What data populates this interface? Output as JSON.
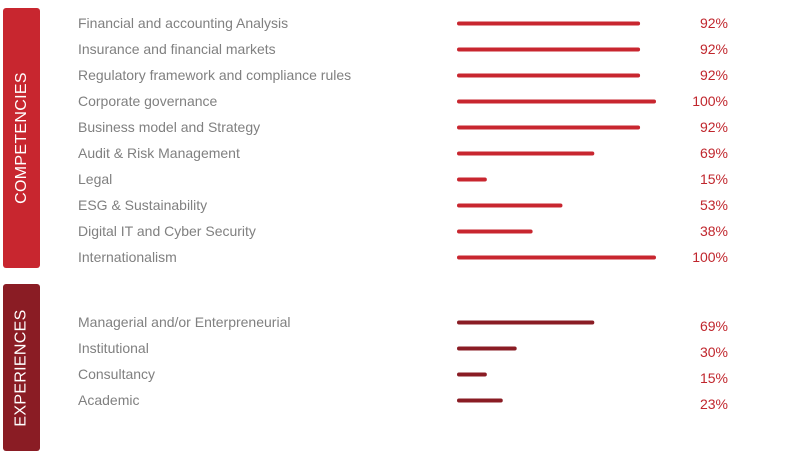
{
  "colors": {
    "competencies": "#c8262f",
    "experiences": "#8a1c24",
    "label_text": "#808080",
    "percent_text": "#c0262d"
  },
  "chart_data": [
    {
      "type": "bar",
      "orientation": "horizontal",
      "group": "COMPETENCIES",
      "categories": [
        "Financial and accounting Analysis",
        "Insurance and financial markets",
        "Regulatory framework and compliance rules",
        "Corporate governance",
        "Business model and Strategy",
        "Audit & Risk Management",
        "Legal",
        "ESG & Sustainability",
        "Digital IT and Cyber Security",
        "Internationalism"
      ],
      "values": [
        92,
        92,
        92,
        100,
        92,
        69,
        15,
        53,
        38,
        100
      ],
      "value_labels": [
        "92%",
        "92%",
        "92%",
        "100%",
        "92%",
        "69%",
        "15%",
        "53%",
        "38%",
        "100%"
      ],
      "xlim": [
        0,
        100
      ]
    },
    {
      "type": "bar",
      "orientation": "horizontal",
      "group": "EXPERIENCES",
      "categories": [
        "Managerial and/or Enterpreneurial",
        "Institutional",
        "Consultancy",
        "Academic"
      ],
      "values": [
        69,
        30,
        15,
        23
      ],
      "value_labels": [
        "69%",
        "30%",
        "15%",
        "23%"
      ],
      "xlim": [
        0,
        100
      ]
    }
  ]
}
